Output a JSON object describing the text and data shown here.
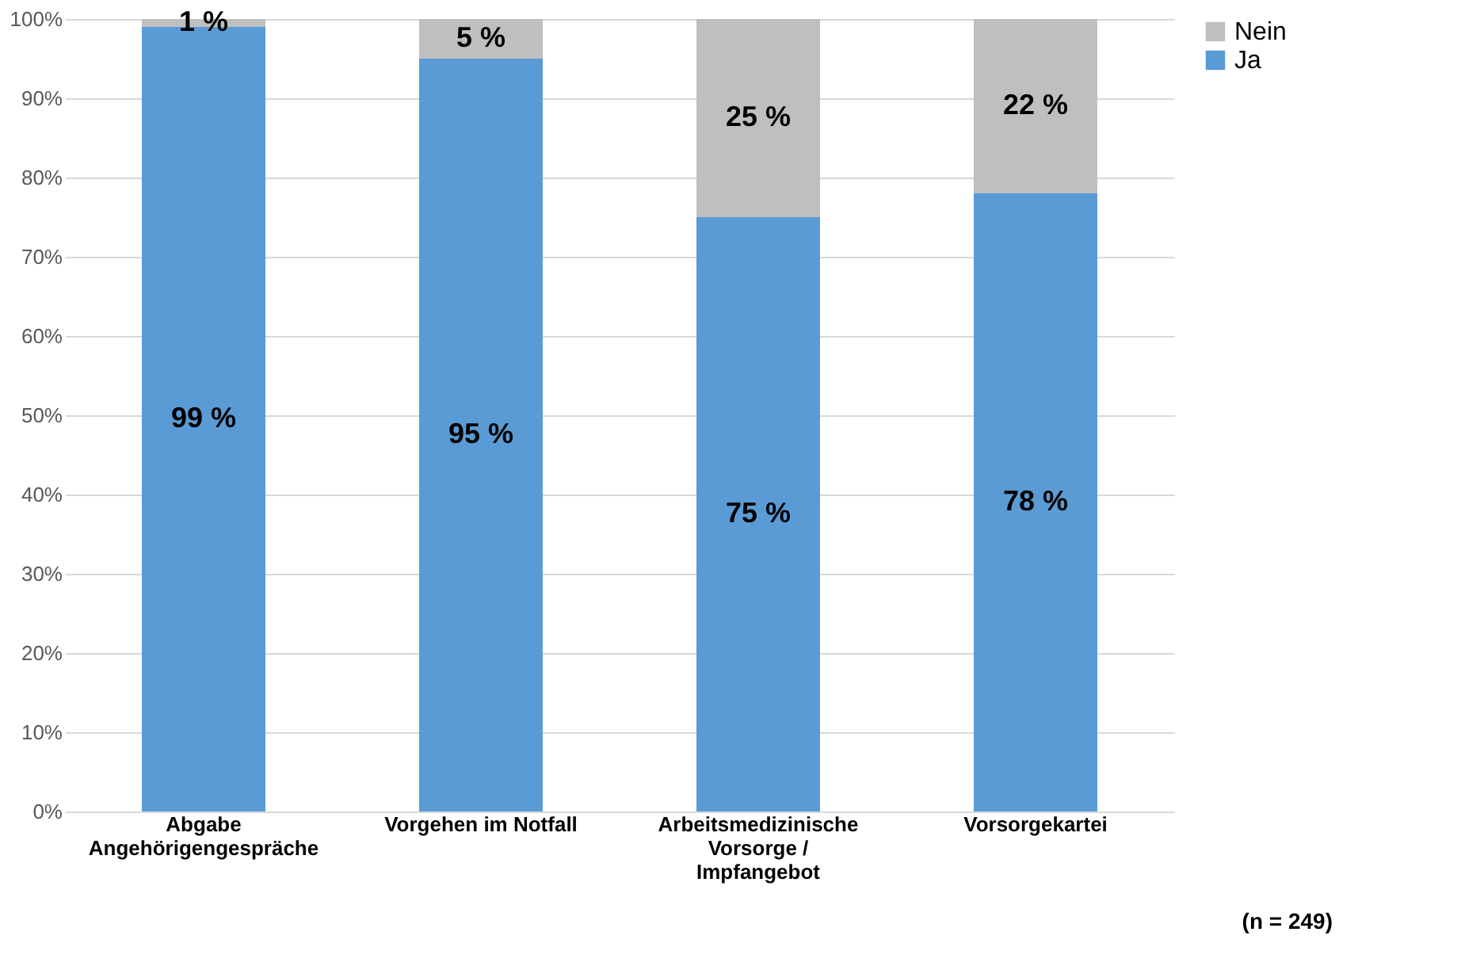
{
  "chart_data": {
    "type": "bar",
    "stacked": true,
    "categories": [
      "Abgabe Angehörigengespräche",
      "Vorgehen im Notfall",
      "Arbeitsmedizinische Vorsorge / Impfangebot",
      "Vorsorgekartei"
    ],
    "series": [
      {
        "name": "Ja",
        "color": "#5b9bd5",
        "values": [
          99,
          95,
          75,
          78
        ],
        "value_labels": [
          "99 %",
          "95 %",
          "75 %",
          "78 %"
        ]
      },
      {
        "name": "Nein",
        "color": "#bfbfbf",
        "values": [
          1,
          5,
          25,
          22
        ],
        "value_labels": [
          "1 %",
          "5 %",
          "25 %",
          "22 %"
        ]
      }
    ],
    "ylim": [
      0,
      100
    ],
    "yticks": [
      {
        "value": 0,
        "label": "0%"
      },
      {
        "value": 10,
        "label": "10%"
      },
      {
        "value": 20,
        "label": "20%"
      },
      {
        "value": 30,
        "label": "30%"
      },
      {
        "value": 40,
        "label": "40%"
      },
      {
        "value": 50,
        "label": "50%"
      },
      {
        "value": 60,
        "label": "60%"
      },
      {
        "value": 70,
        "label": "70%"
      },
      {
        "value": 80,
        "label": "80%"
      },
      {
        "value": 90,
        "label": "90%"
      },
      {
        "value": 100,
        "label": "100%"
      }
    ],
    "grid": "y",
    "legend": "right",
    "annotations": [
      "(n = 249)"
    ]
  }
}
